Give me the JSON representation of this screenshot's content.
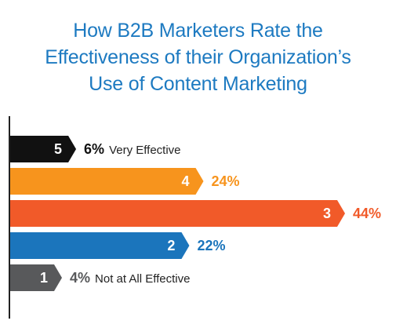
{
  "title_lines": [
    "How B2B Marketers Rate the",
    "Effectiveness of their Organization’s",
    "Use of Content Marketing"
  ],
  "chart_data": {
    "type": "bar",
    "orientation": "horizontal",
    "title": "How B2B Marketers Rate the Effectiveness of their Organization’s Use of Content Marketing",
    "categories": [
      "5",
      "4",
      "3",
      "2",
      "1"
    ],
    "values": [
      6,
      24,
      44,
      22,
      4
    ],
    "value_labels": [
      "6%",
      "24%",
      "44%",
      "22%",
      "4%"
    ],
    "annotations": [
      "Very Effective",
      "",
      "",
      "",
      "Not at All Effective"
    ],
    "colors": [
      "#111111",
      "#f7941d",
      "#f15a29",
      "#1b75bc",
      "#58595b"
    ],
    "value_label_colors": [
      "#111111",
      "#f7941d",
      "#f15a29",
      "#1b75bc",
      "#58595b"
    ],
    "xlim": [
      0,
      44
    ],
    "grid": false,
    "legend": "none"
  }
}
